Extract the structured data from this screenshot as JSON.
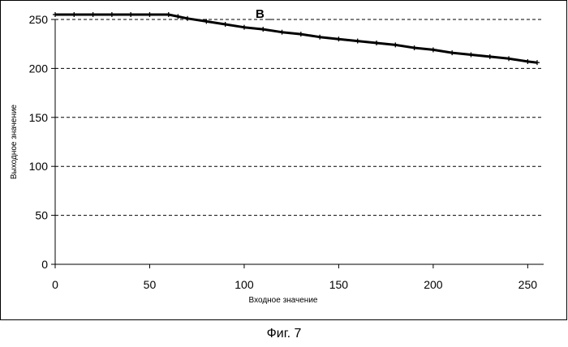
{
  "chart_data": {
    "type": "line",
    "xlabel": "Входное значение",
    "ylabel": "Выходное значение",
    "xlim": [
      0,
      255
    ],
    "ylim": [
      0,
      250
    ],
    "xticks": [
      "0",
      "50",
      "100",
      "150",
      "200",
      "250"
    ],
    "yticks": [
      "0",
      "50",
      "100",
      "150",
      "200",
      "250"
    ],
    "grid": "horizontal-dashed",
    "annotation": "B",
    "series": [
      {
        "x": [
          0,
          10,
          20,
          30,
          40,
          50,
          60,
          65,
          70,
          80,
          90,
          100,
          110,
          120,
          130,
          140,
          150,
          160,
          170,
          180,
          190,
          200,
          210,
          220,
          230,
          240,
          250,
          255
        ],
        "y": [
          255,
          255,
          255,
          255,
          255,
          255,
          255,
          253,
          251,
          248,
          245,
          242,
          240,
          237,
          235,
          232,
          230,
          228,
          226,
          224,
          221,
          219,
          216,
          214,
          212,
          210,
          207,
          206
        ]
      }
    ]
  },
  "caption": "Фиг. 7"
}
